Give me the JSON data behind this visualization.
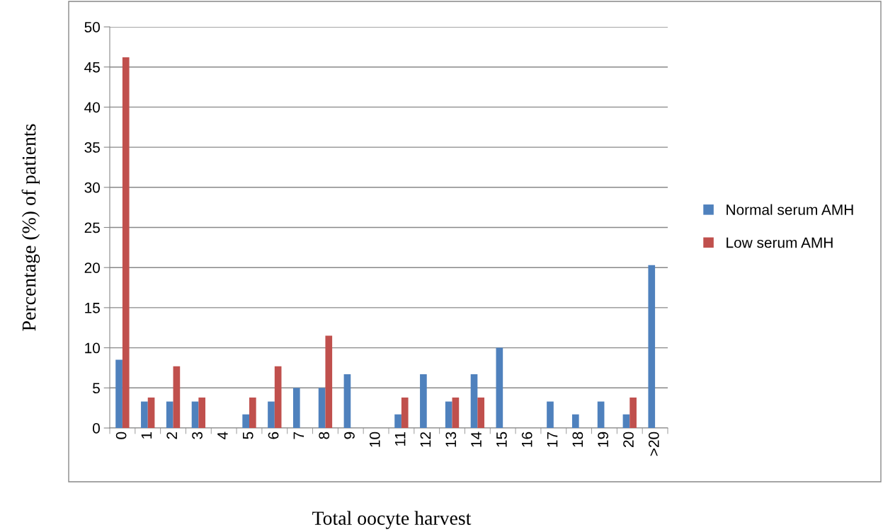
{
  "chart_data": {
    "type": "bar",
    "xlabel": "Total oocyte harvest",
    "ylabel": "Percentage (%) of patients",
    "categories": [
      "0",
      "1",
      "2",
      "3",
      "4",
      "5",
      "6",
      "7",
      "8",
      "9",
      "10",
      "11",
      "12",
      "13",
      "14",
      "15",
      "16",
      "17",
      "18",
      "19",
      "20",
      ">20"
    ],
    "series": [
      {
        "name": "Normal serum AMH",
        "color": "#4f81bd",
        "values": [
          8.5,
          3.3,
          3.3,
          3.3,
          0,
          1.7,
          3.3,
          5.0,
          5.0,
          6.7,
          0,
          1.7,
          6.7,
          3.3,
          6.7,
          10,
          0,
          3.3,
          1.7,
          3.3,
          1.7,
          20.3
        ]
      },
      {
        "name": "Low serum AMH",
        "color": "#c0504d",
        "values": [
          46.2,
          3.8,
          7.7,
          3.8,
          0,
          3.8,
          7.7,
          0,
          11.5,
          0,
          0,
          3.8,
          0,
          3.8,
          3.8,
          0,
          0,
          0,
          0,
          0,
          3.8,
          0
        ]
      }
    ],
    "ylim": [
      0,
      50
    ],
    "yticks": [
      0,
      5,
      10,
      15,
      20,
      25,
      30,
      35,
      40,
      45,
      50
    ],
    "grid": "y",
    "legend": "right"
  }
}
